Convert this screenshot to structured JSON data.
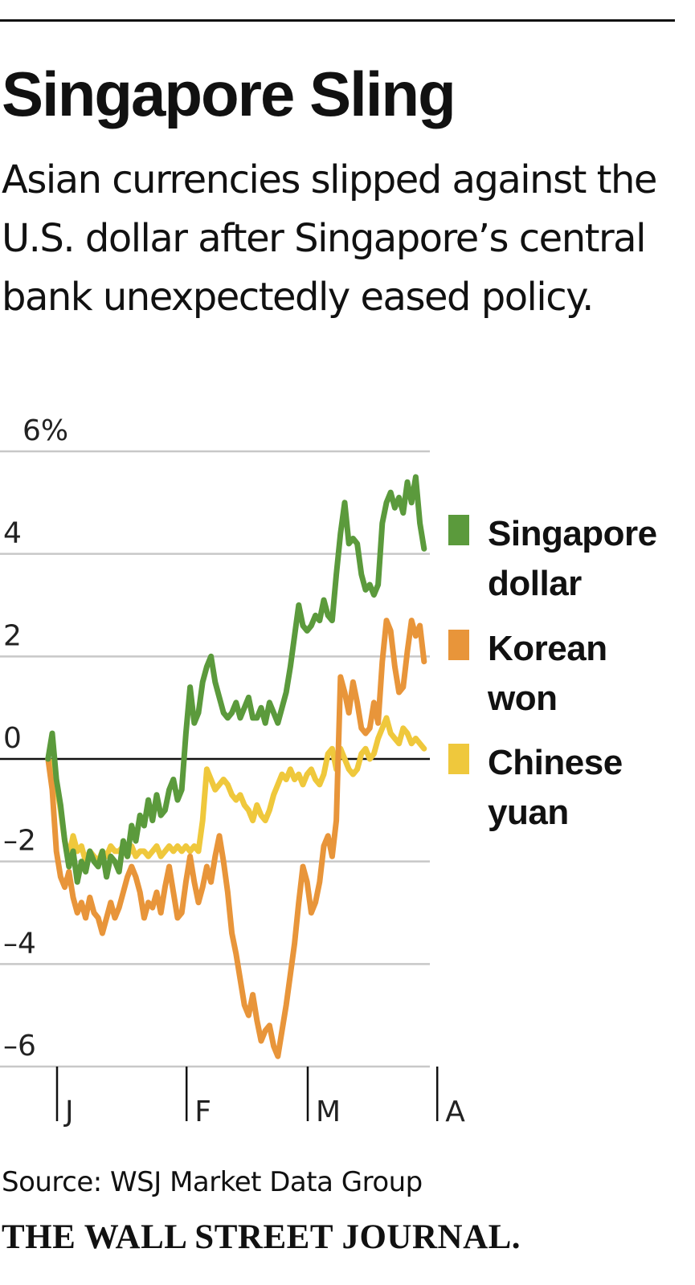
{
  "header": {
    "title": "Singapore Sling",
    "subtitle": "Asian currencies slipped against the U.S. dollar after Singapore’s central bank unexpectedly eased policy."
  },
  "footer": {
    "source": "Source: WSJ Market Data Group",
    "brand": "THE WALL STREET JOURNAL."
  },
  "chart_data": {
    "type": "line",
    "title": "Singapore Sling",
    "xlabel": "",
    "ylabel": "",
    "ylim": [
      -6,
      6
    ],
    "yticks": [
      6,
      4,
      2,
      0,
      -2,
      -4,
      -6
    ],
    "ytick_labels": [
      "6%",
      "4",
      "2",
      "0",
      "–2",
      "–4",
      "–6"
    ],
    "x_domain": [
      0,
      108
    ],
    "x_month_ticks": [
      {
        "label": "J",
        "x": 0
      },
      {
        "label": "F",
        "x": 31
      },
      {
        "label": "M",
        "x": 60
      },
      {
        "label": "A",
        "x": 91
      }
    ],
    "grid": true,
    "legend": "right",
    "series": [
      {
        "name": "Singapore dollar",
        "label_lines": [
          "Singapore",
          "dollar"
        ],
        "color": "#5b9a3c",
        "points": [
          [
            -1,
            0
          ],
          [
            0,
            0.5
          ],
          [
            1,
            -0.4
          ],
          [
            2,
            -0.9
          ],
          [
            3,
            -1.6
          ],
          [
            4,
            -2.1
          ],
          [
            5,
            -1.8
          ],
          [
            6,
            -2.4
          ],
          [
            7,
            -2
          ],
          [
            8,
            -2.2
          ],
          [
            9,
            -1.8
          ],
          [
            10,
            -2
          ],
          [
            11,
            -2.1
          ],
          [
            12,
            -1.8
          ],
          [
            13,
            -2.3
          ],
          [
            14,
            -1.9
          ],
          [
            15,
            -2
          ],
          [
            16,
            -2.2
          ],
          [
            17,
            -1.6
          ],
          [
            18,
            -1.9
          ],
          [
            19,
            -1.3
          ],
          [
            20,
            -1.6
          ],
          [
            21,
            -1.1
          ],
          [
            22,
            -1.3
          ],
          [
            23,
            -0.8
          ],
          [
            24,
            -1.2
          ],
          [
            25,
            -0.7
          ],
          [
            26,
            -1.1
          ],
          [
            27,
            -1
          ],
          [
            28,
            -0.6
          ],
          [
            29,
            -0.4
          ],
          [
            30,
            -0.8
          ],
          [
            31,
            -0.6
          ],
          [
            32,
            0.5
          ],
          [
            33,
            1.4
          ],
          [
            34,
            0.7
          ],
          [
            35,
            0.9
          ],
          [
            36,
            1.5
          ],
          [
            37,
            1.8
          ],
          [
            38,
            2
          ],
          [
            39,
            1.5
          ],
          [
            40,
            1.2
          ],
          [
            41,
            0.9
          ],
          [
            42,
            0.8
          ],
          [
            43,
            0.9
          ],
          [
            44,
            1.1
          ],
          [
            45,
            0.8
          ],
          [
            46,
            1
          ],
          [
            47,
            1.2
          ],
          [
            48,
            0.8
          ],
          [
            49,
            0.8
          ],
          [
            50,
            1
          ],
          [
            51,
            0.7
          ],
          [
            52,
            1.1
          ],
          [
            53,
            0.9
          ],
          [
            54,
            0.7
          ],
          [
            55,
            1
          ],
          [
            56,
            1.3
          ],
          [
            57,
            1.8
          ],
          [
            58,
            2.4
          ],
          [
            59,
            3
          ],
          [
            60,
            2.6
          ],
          [
            61,
            2.5
          ],
          [
            62,
            2.6
          ],
          [
            63,
            2.8
          ],
          [
            64,
            2.7
          ],
          [
            65,
            3.1
          ],
          [
            66,
            2.8
          ],
          [
            67,
            2.7
          ],
          [
            68,
            3.6
          ],
          [
            69,
            4.4
          ],
          [
            70,
            5
          ],
          [
            71,
            4.2
          ],
          [
            72,
            4.3
          ],
          [
            73,
            4.2
          ],
          [
            74,
            3.6
          ],
          [
            75,
            3.3
          ],
          [
            76,
            3.4
          ],
          [
            77,
            3.2
          ],
          [
            78,
            3.4
          ],
          [
            79,
            4.6
          ],
          [
            80,
            5
          ],
          [
            81,
            5.2
          ],
          [
            82,
            4.9
          ],
          [
            83,
            5.1
          ],
          [
            84,
            4.8
          ],
          [
            85,
            5.4
          ],
          [
            86,
            5
          ],
          [
            87,
            5.5
          ],
          [
            88,
            4.6
          ],
          [
            89,
            4.1
          ]
        ]
      },
      {
        "name": "Korean won",
        "label_lines": [
          "Korean",
          "won"
        ],
        "color": "#e8953a",
        "points": [
          [
            -1,
            0
          ],
          [
            0,
            -0.6
          ],
          [
            1,
            -1.8
          ],
          [
            2,
            -2.3
          ],
          [
            3,
            -2.5
          ],
          [
            4,
            -2.2
          ],
          [
            5,
            -2.7
          ],
          [
            6,
            -3
          ],
          [
            7,
            -2.8
          ],
          [
            8,
            -3.1
          ],
          [
            9,
            -2.7
          ],
          [
            10,
            -3
          ],
          [
            11,
            -3.1
          ],
          [
            12,
            -3.4
          ],
          [
            13,
            -3.1
          ],
          [
            14,
            -2.8
          ],
          [
            15,
            -3.1
          ],
          [
            16,
            -2.9
          ],
          [
            17,
            -2.6
          ],
          [
            18,
            -2.3
          ],
          [
            19,
            -2.1
          ],
          [
            20,
            -2.3
          ],
          [
            21,
            -2.6
          ],
          [
            22,
            -3.1
          ],
          [
            23,
            -2.8
          ],
          [
            24,
            -2.9
          ],
          [
            25,
            -2.6
          ],
          [
            26,
            -3
          ],
          [
            27,
            -2.5
          ],
          [
            28,
            -2.1
          ],
          [
            29,
            -2.6
          ],
          [
            30,
            -3.1
          ],
          [
            31,
            -3
          ],
          [
            32,
            -2.4
          ],
          [
            33,
            -1.9
          ],
          [
            34,
            -2.4
          ],
          [
            35,
            -2.8
          ],
          [
            36,
            -2.5
          ],
          [
            37,
            -2.1
          ],
          [
            38,
            -2.4
          ],
          [
            39,
            -1.9
          ],
          [
            40,
            -1.5
          ],
          [
            41,
            -2
          ],
          [
            42,
            -2.6
          ],
          [
            43,
            -3.4
          ],
          [
            44,
            -3.8
          ],
          [
            45,
            -4.3
          ],
          [
            46,
            -4.8
          ],
          [
            47,
            -5
          ],
          [
            48,
            -4.6
          ],
          [
            49,
            -5.1
          ],
          [
            50,
            -5.5
          ],
          [
            51,
            -5.3
          ],
          [
            52,
            -5.2
          ],
          [
            53,
            -5.6
          ],
          [
            54,
            -5.8
          ],
          [
            55,
            -5.3
          ],
          [
            56,
            -4.8
          ],
          [
            57,
            -4.2
          ],
          [
            58,
            -3.6
          ],
          [
            59,
            -2.8
          ],
          [
            60,
            -2.1
          ],
          [
            61,
            -2.4
          ],
          [
            62,
            -3
          ],
          [
            63,
            -2.8
          ],
          [
            64,
            -2.4
          ],
          [
            65,
            -1.7
          ],
          [
            66,
            -1.5
          ],
          [
            67,
            -1.9
          ],
          [
            68,
            -1.2
          ],
          [
            69,
            1.6
          ],
          [
            70,
            1.3
          ],
          [
            71,
            0.9
          ],
          [
            72,
            1.5
          ],
          [
            73,
            1.1
          ],
          [
            74,
            0.6
          ],
          [
            75,
            0.5
          ],
          [
            76,
            0.6
          ],
          [
            77,
            1.1
          ],
          [
            78,
            0.7
          ],
          [
            79,
            1.9
          ],
          [
            80,
            2.7
          ],
          [
            81,
            2.5
          ],
          [
            82,
            1.8
          ],
          [
            83,
            1.3
          ],
          [
            84,
            1.4
          ],
          [
            85,
            2.1
          ],
          [
            86,
            2.7
          ],
          [
            87,
            2.4
          ],
          [
            88,
            2.6
          ],
          [
            89,
            1.9
          ]
        ]
      },
      {
        "name": "Chinese yuan",
        "label_lines": [
          "Chinese",
          "yuan"
        ],
        "color": "#efc83c",
        "points": [
          [
            -1,
            0
          ],
          [
            0,
            -0.1
          ],
          [
            1,
            -0.5
          ],
          [
            2,
            -1
          ],
          [
            3,
            -1.6
          ],
          [
            4,
            -1.9
          ],
          [
            5,
            -1.5
          ],
          [
            6,
            -1.8
          ],
          [
            7,
            -1.7
          ],
          [
            8,
            -2
          ],
          [
            9,
            -1.8
          ],
          [
            10,
            -1.9
          ],
          [
            11,
            -2
          ],
          [
            12,
            -1.8
          ],
          [
            13,
            -1.9
          ],
          [
            14,
            -1.7
          ],
          [
            15,
            -1.8
          ],
          [
            16,
            -1.8
          ],
          [
            17,
            -1.7
          ],
          [
            18,
            -1.9
          ],
          [
            19,
            -1.7
          ],
          [
            20,
            -1.9
          ],
          [
            21,
            -1.8
          ],
          [
            22,
            -1.8
          ],
          [
            23,
            -1.9
          ],
          [
            24,
            -1.8
          ],
          [
            25,
            -1.7
          ],
          [
            26,
            -1.9
          ],
          [
            27,
            -1.8
          ],
          [
            28,
            -1.7
          ],
          [
            29,
            -1.8
          ],
          [
            30,
            -1.7
          ],
          [
            31,
            -1.8
          ],
          [
            32,
            -1.7
          ],
          [
            33,
            -1.8
          ],
          [
            34,
            -1.7
          ],
          [
            35,
            -1.8
          ],
          [
            36,
            -1.2
          ],
          [
            37,
            -0.2
          ],
          [
            38,
            -0.4
          ],
          [
            39,
            -0.6
          ],
          [
            40,
            -0.5
          ],
          [
            41,
            -0.4
          ],
          [
            42,
            -0.5
          ],
          [
            43,
            -0.7
          ],
          [
            44,
            -0.8
          ],
          [
            45,
            -0.7
          ],
          [
            46,
            -0.9
          ],
          [
            47,
            -1
          ],
          [
            48,
            -1.2
          ],
          [
            49,
            -0.9
          ],
          [
            50,
            -1.1
          ],
          [
            51,
            -1.2
          ],
          [
            52,
            -1
          ],
          [
            53,
            -0.7
          ],
          [
            54,
            -0.5
          ],
          [
            55,
            -0.3
          ],
          [
            56,
            -0.4
          ],
          [
            57,
            -0.2
          ],
          [
            58,
            -0.4
          ],
          [
            59,
            -0.3
          ],
          [
            60,
            -0.5
          ],
          [
            61,
            -0.3
          ],
          [
            62,
            -0.2
          ],
          [
            63,
            -0.4
          ],
          [
            64,
            -0.5
          ],
          [
            65,
            -0.3
          ],
          [
            66,
            0.1
          ],
          [
            67,
            0.2
          ],
          [
            68,
            -0.2
          ],
          [
            69,
            0.2
          ],
          [
            70,
            0
          ],
          [
            71,
            -0.2
          ],
          [
            72,
            -0.3
          ],
          [
            73,
            -0.2
          ],
          [
            74,
            0.1
          ],
          [
            75,
            0.2
          ],
          [
            76,
            0
          ],
          [
            77,
            0.1
          ],
          [
            78,
            0.4
          ],
          [
            79,
            0.6
          ],
          [
            80,
            0.8
          ],
          [
            81,
            0.5
          ],
          [
            82,
            0.4
          ],
          [
            83,
            0.3
          ],
          [
            84,
            0.6
          ],
          [
            85,
            0.5
          ],
          [
            86,
            0.3
          ],
          [
            87,
            0.4
          ],
          [
            88,
            0.3
          ],
          [
            89,
            0.2
          ]
        ]
      }
    ]
  }
}
